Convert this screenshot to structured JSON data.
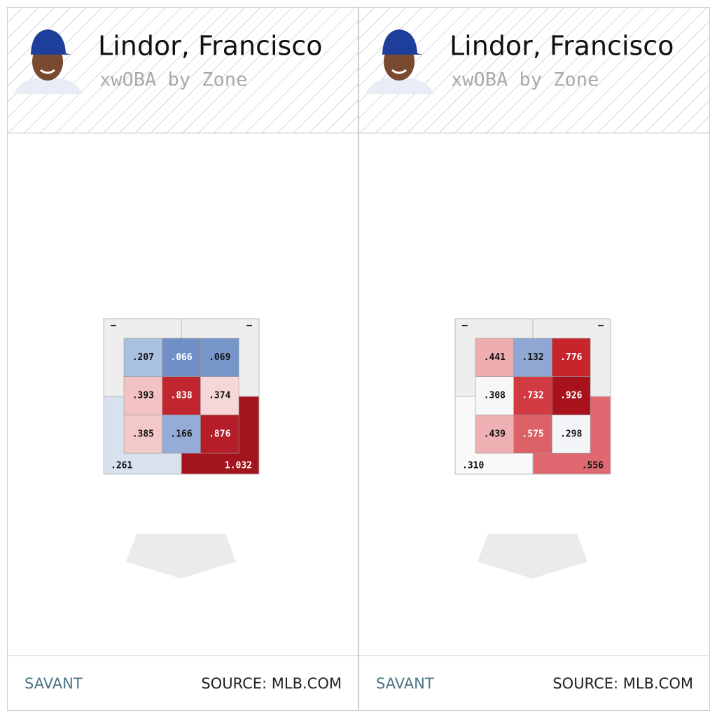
{
  "panels": [
    {
      "name": "Lindor, Francisco",
      "subtitle": "xwOBA by Zone",
      "zones": [
        [
          {
            "label": ".207",
            "color": "#a9c0de"
          },
          {
            "label": ".066",
            "color": "#6f8fc6"
          },
          {
            "label": ".069",
            "color": "#7797cb"
          }
        ],
        [
          {
            "label": ".393",
            "color": "#f3c2c4"
          },
          {
            "label": ".838",
            "color": "#c1262e"
          },
          {
            "label": ".374",
            "color": "#f6d6d6"
          }
        ],
        [
          {
            "label": ".385",
            "color": "#f3c8c8"
          },
          {
            "label": ".166",
            "color": "#94acd6"
          },
          {
            "label": ".876",
            "color": "#b51e28"
          }
        ]
      ],
      "outer": [
        {
          "label": "–",
          "color": "#eeeeee"
        },
        {
          "label": "–",
          "color": "#eeeeee"
        },
        {
          "label": ".261",
          "color": "#d8e2ef"
        },
        {
          "label": "1.032",
          "color": "#a4141d"
        }
      ],
      "footer_left": "SAVANT",
      "footer_right": "SOURCE: MLB.COM"
    },
    {
      "name": "Lindor, Francisco",
      "subtitle": "xwOBA by Zone",
      "zones": [
        [
          {
            "label": ".441",
            "color": "#eeadb0"
          },
          {
            "label": ".132",
            "color": "#8fa8d3"
          },
          {
            "label": ".776",
            "color": "#c8242c"
          }
        ],
        [
          {
            "label": ".308",
            "color": "#f7f7f7"
          },
          {
            "label": ".732",
            "color": "#d13a40"
          },
          {
            "label": ".926",
            "color": "#a8121c"
          }
        ],
        [
          {
            "label": ".439",
            "color": "#eeb0b3"
          },
          {
            "label": ".575",
            "color": "#db6166"
          },
          {
            "label": ".298",
            "color": "#f4f5f8"
          }
        ]
      ],
      "outer": [
        {
          "label": "–",
          "color": "#eeeeee"
        },
        {
          "label": "–",
          "color": "#eeeeee"
        },
        {
          "label": ".310",
          "color": "#f9f9f9"
        },
        {
          "label": ".556",
          "color": "#e06870"
        }
      ],
      "footer_left": "SAVANT",
      "footer_right": "SOURCE: MLB.COM"
    }
  ]
}
